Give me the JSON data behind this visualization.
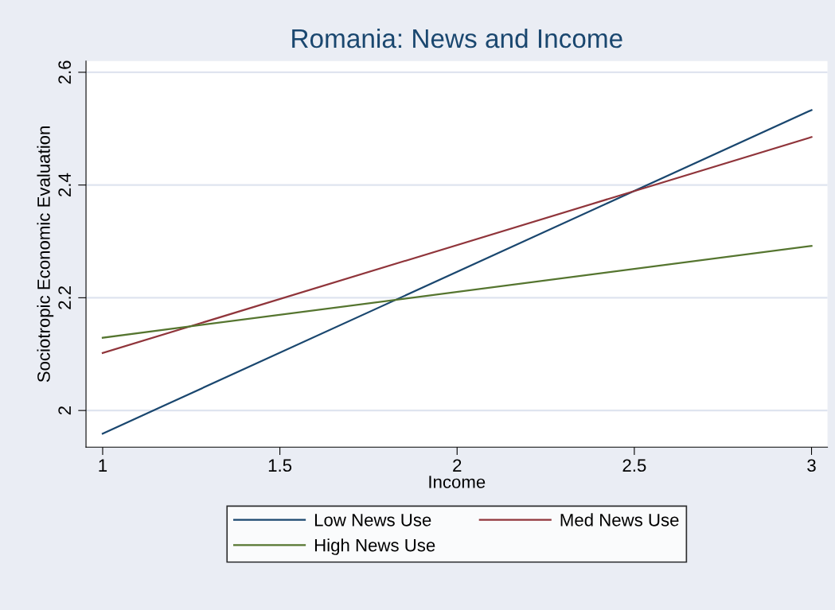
{
  "chart_data": {
    "type": "line",
    "title": "Romania: News and Income",
    "xlabel": "Income",
    "ylabel": "Sociotropic Economic Evaluation",
    "x": [
      1,
      3
    ],
    "series": [
      {
        "name": "Low News Use",
        "color": "#1a476f",
        "values": [
          1.959,
          2.533
        ]
      },
      {
        "name": "Med News Use",
        "color": "#90353b",
        "values": [
          2.102,
          2.485
        ]
      },
      {
        "name": "High News Use",
        "color": "#55752f",
        "values": [
          2.129,
          2.292
        ]
      }
    ],
    "xlim": [
      0.953,
      3.045
    ],
    "ylim": [
      1.935,
      2.62
    ],
    "xticks": [
      1,
      1.5,
      2,
      2.5,
      3
    ],
    "yticks": [
      2,
      2.2,
      2.4,
      2.6
    ],
    "grid": "y",
    "legend": "bottom",
    "marker": "none",
    "line_style": "solid"
  }
}
